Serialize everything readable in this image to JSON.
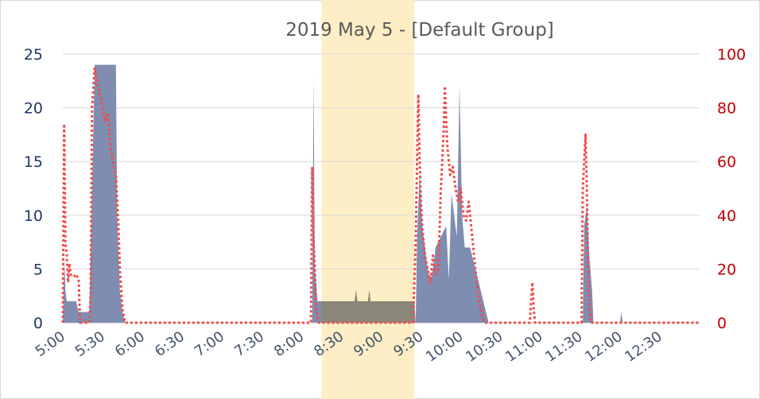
{
  "chart_data": {
    "type": "area",
    "title": "2019 May 5 - [Default Group]",
    "colors": {
      "area": "#7f8db0",
      "line": "#f24b4b",
      "highlight": "#fdeec6",
      "highlight_overlap": "#8b8778",
      "left_axis": "#1f3864",
      "right_axis": "#c00000"
    },
    "x_ticks": [
      "5:00",
      "5:30",
      "6:00",
      "6:30",
      "7:00",
      "7:30",
      "8:00",
      "8:30",
      "9:00",
      "9:30",
      "10:00",
      "10:30",
      "11:00",
      "11:30",
      "12:00",
      "12:30"
    ],
    "y_left": {
      "min": 0,
      "max": 25,
      "ticks": [
        0,
        5,
        10,
        15,
        20,
        25
      ]
    },
    "y_right": {
      "min": 0,
      "max": 100,
      "ticks": [
        0,
        20,
        40,
        60,
        80,
        100
      ]
    },
    "x_range": [
      "5:00",
      "13:00"
    ],
    "highlight_range": [
      "8:15",
      "9:25"
    ],
    "grid": true,
    "series": [
      {
        "axis": "left",
        "style": "area",
        "points": [
          [
            "5:00",
            0
          ],
          [
            "5:01",
            6
          ],
          [
            "5:02",
            3
          ],
          [
            "5:03",
            2
          ],
          [
            "5:10",
            2
          ],
          [
            "5:12",
            1
          ],
          [
            "5:20",
            1
          ],
          [
            "5:23",
            18
          ],
          [
            "5:24",
            24
          ],
          [
            "5:40",
            24
          ],
          [
            "5:41",
            10
          ],
          [
            "5:43",
            3
          ],
          [
            "5:45",
            1
          ],
          [
            "5:47",
            0
          ],
          [
            "8:08",
            0
          ],
          [
            "8:09",
            23
          ],
          [
            "8:10",
            5
          ],
          [
            "8:12",
            2
          ],
          [
            "8:40",
            2
          ],
          [
            "8:41",
            3
          ],
          [
            "8:42",
            2
          ],
          [
            "8:50",
            2
          ],
          [
            "8:51",
            3
          ],
          [
            "8:52",
            2
          ],
          [
            "9:25",
            2
          ],
          [
            "9:26",
            0
          ],
          [
            "9:27",
            8
          ],
          [
            "9:29",
            14
          ],
          [
            "9:31",
            9
          ],
          [
            "9:33",
            7
          ],
          [
            "9:35",
            5
          ],
          [
            "9:37",
            4
          ],
          [
            "9:39",
            5
          ],
          [
            "9:41",
            7
          ],
          [
            "9:45",
            8
          ],
          [
            "9:49",
            9
          ],
          [
            "9:51",
            4
          ],
          [
            "9:53",
            12
          ],
          [
            "9:55",
            10
          ],
          [
            "9:57",
            8
          ],
          [
            "9:59",
            22
          ],
          [
            "10:01",
            10
          ],
          [
            "10:03",
            7
          ],
          [
            "10:07",
            7
          ],
          [
            "10:11",
            5
          ],
          [
            "10:15",
            3
          ],
          [
            "10:19",
            1
          ],
          [
            "10:21",
            0
          ],
          [
            "11:32",
            0
          ],
          [
            "11:33",
            9
          ],
          [
            "11:35",
            11
          ],
          [
            "11:37",
            6
          ],
          [
            "11:39",
            3
          ],
          [
            "11:40",
            0
          ],
          [
            "12:00",
            0
          ],
          [
            "12:01",
            1
          ],
          [
            "12:02",
            0
          ],
          [
            "13:00",
            0
          ]
        ]
      },
      {
        "axis": "right",
        "style": "dotted-line",
        "points": [
          [
            "5:00",
            0
          ],
          [
            "5:01",
            74
          ],
          [
            "5:02",
            30
          ],
          [
            "5:03",
            25
          ],
          [
            "5:04",
            15
          ],
          [
            "5:05",
            22
          ],
          [
            "5:06",
            18
          ],
          [
            "5:08",
            17
          ],
          [
            "5:10",
            18
          ],
          [
            "5:12",
            16
          ],
          [
            "5:13",
            0
          ],
          [
            "5:15",
            0
          ],
          [
            "5:20",
            0
          ],
          [
            "5:21",
            10
          ],
          [
            "5:22",
            80
          ],
          [
            "5:24",
            95
          ],
          [
            "5:26",
            90
          ],
          [
            "5:28",
            85
          ],
          [
            "5:30",
            80
          ],
          [
            "5:32",
            75
          ],
          [
            "5:34",
            78
          ],
          [
            "5:36",
            65
          ],
          [
            "5:38",
            60
          ],
          [
            "5:40",
            55
          ],
          [
            "5:41",
            45
          ],
          [
            "5:42",
            35
          ],
          [
            "5:43",
            20
          ],
          [
            "5:45",
            5
          ],
          [
            "5:47",
            0
          ],
          [
            "8:07",
            0
          ],
          [
            "8:08",
            58
          ],
          [
            "8:09",
            30
          ],
          [
            "8:10",
            20
          ],
          [
            "8:11",
            5
          ],
          [
            "8:13",
            0
          ],
          [
            "9:24",
            0
          ],
          [
            "9:26",
            30
          ],
          [
            "9:27",
            60
          ],
          [
            "9:28",
            85
          ],
          [
            "9:29",
            60
          ],
          [
            "9:30",
            45
          ],
          [
            "9:31",
            35
          ],
          [
            "9:33",
            25
          ],
          [
            "9:35",
            20
          ],
          [
            "9:37",
            15
          ],
          [
            "9:39",
            25
          ],
          [
            "9:41",
            18
          ],
          [
            "9:43",
            20
          ],
          [
            "9:45",
            50
          ],
          [
            "9:47",
            70
          ],
          [
            "9:48",
            88
          ],
          [
            "9:49",
            75
          ],
          [
            "9:50",
            65
          ],
          [
            "9:52",
            55
          ],
          [
            "9:54",
            58
          ],
          [
            "9:56",
            50
          ],
          [
            "9:58",
            45
          ],
          [
            "10:00",
            50
          ],
          [
            "10:02",
            40
          ],
          [
            "10:04",
            38
          ],
          [
            "10:06",
            45
          ],
          [
            "10:08",
            35
          ],
          [
            "10:10",
            25
          ],
          [
            "10:12",
            15
          ],
          [
            "10:14",
            8
          ],
          [
            "10:16",
            3
          ],
          [
            "10:18",
            0
          ],
          [
            "10:52",
            0
          ],
          [
            "10:53",
            8
          ],
          [
            "10:54",
            15
          ],
          [
            "10:55",
            5
          ],
          [
            "10:56",
            0
          ],
          [
            "11:31",
            0
          ],
          [
            "11:32",
            50
          ],
          [
            "11:33",
            60
          ],
          [
            "11:34",
            70
          ],
          [
            "11:35",
            50
          ],
          [
            "11:36",
            20
          ],
          [
            "11:37",
            5
          ],
          [
            "11:38",
            0
          ],
          [
            "13:00",
            0
          ]
        ]
      }
    ]
  }
}
